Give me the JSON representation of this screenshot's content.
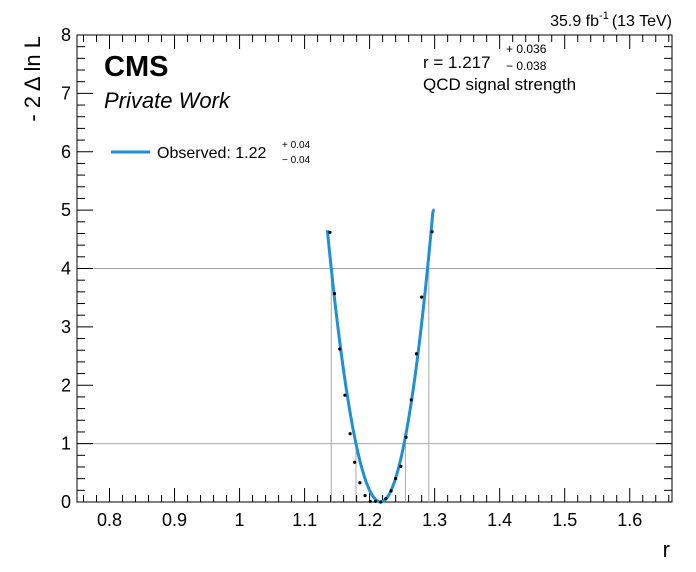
{
  "chart_data": {
    "type": "line",
    "title": "",
    "experiment": "CMS",
    "label": "Private Work",
    "lumi": {
      "value": "35.9 fb",
      "exp": "-1",
      "energy": "(13 TeV)"
    },
    "xlabel": "r",
    "ylabel": "- 2 Δ ln L",
    "xlim": [
      0.75,
      1.665
    ],
    "ylim": [
      0,
      8
    ],
    "xticks": [
      0.8,
      0.9,
      1.0,
      1.1,
      1.2,
      1.3,
      1.4,
      1.5,
      1.6
    ],
    "xtick_labels": [
      "0.8",
      "0.9",
      "1",
      "1.1",
      "1.2",
      "1.3",
      "1.4",
      "1.5",
      "1.6"
    ],
    "yticks": [
      0,
      1,
      2,
      3,
      4,
      5,
      6,
      7,
      8
    ],
    "ytick_labels": [
      "0",
      "1",
      "2",
      "3",
      "4",
      "5",
      "6",
      "7",
      "8"
    ],
    "reference_lines_y": [
      1,
      4
    ],
    "crossings": [
      {
        "x": 1.141,
        "y": 4
      },
      {
        "x": 1.179,
        "y": 1
      },
      {
        "x": 1.255,
        "y": 1
      },
      {
        "x": 1.291,
        "y": 4
      }
    ],
    "result": {
      "prefix": "r = ",
      "value": "1.217",
      "up": "+ 0.036",
      "down": "− 0.038",
      "description": "QCD signal strength"
    },
    "legend": {
      "placement": "top-left",
      "entry_prefix": "Observed: ",
      "value": "1.22",
      "up": "+ 0.04",
      "down": "− 0.04"
    },
    "series": [
      {
        "name": "Observed",
        "color": "#1f8fd6",
        "curve": {
          "minimum": 1.217,
          "sigma_up": 0.036,
          "sigma_down": 0.038,
          "x_range": [
            1.135,
            1.3
          ]
        },
        "points": [
          [
            1.139,
            4.62
          ],
          [
            1.146,
            3.57
          ],
          [
            1.154,
            2.62
          ],
          [
            1.162,
            1.83
          ],
          [
            1.17,
            1.17
          ],
          [
            1.177,
            0.68
          ],
          [
            1.185,
            0.33
          ],
          [
            1.193,
            0.11
          ],
          [
            1.201,
            0.01
          ],
          [
            1.209,
            0.01
          ],
          [
            1.217,
            0.0
          ],
          [
            1.225,
            0.06
          ],
          [
            1.233,
            0.19
          ],
          [
            1.24,
            0.4
          ],
          [
            1.248,
            0.61
          ],
          [
            1.256,
            1.11
          ],
          [
            1.264,
            1.75
          ],
          [
            1.272,
            2.54
          ],
          [
            1.28,
            3.51
          ],
          [
            1.296,
            4.63
          ]
        ]
      }
    ]
  }
}
